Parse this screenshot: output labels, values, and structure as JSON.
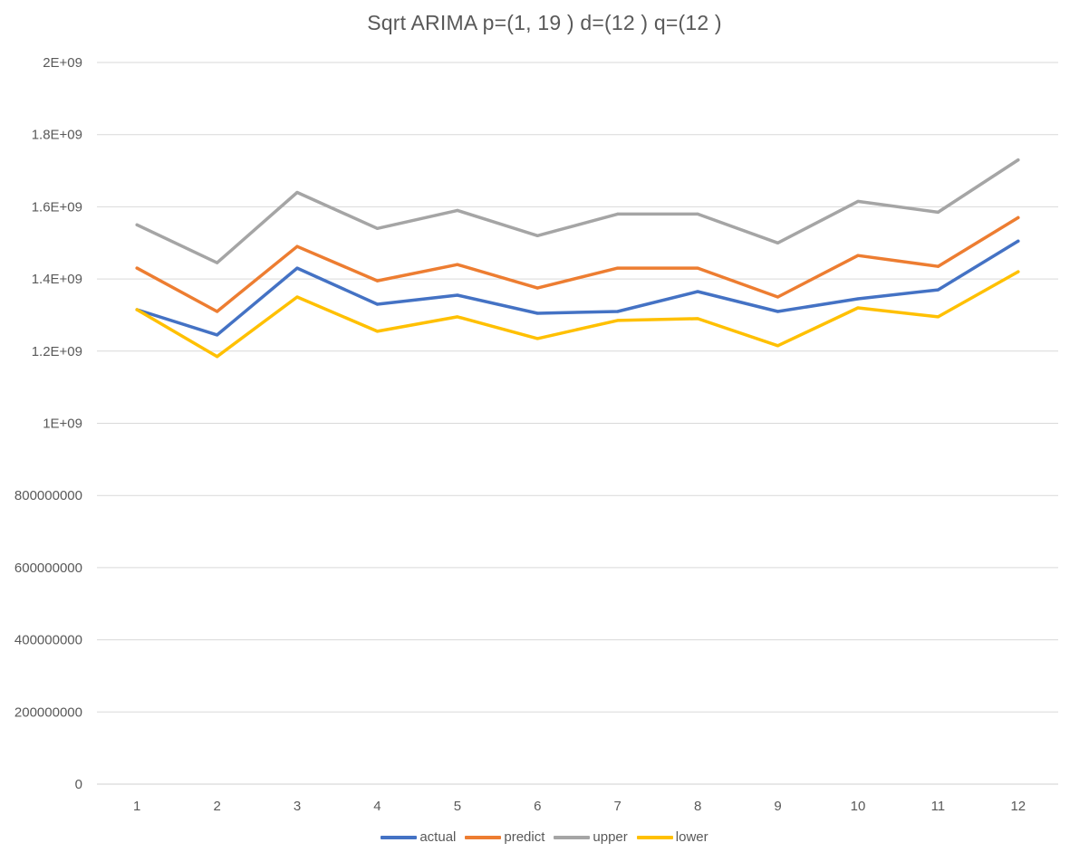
{
  "chart_data": {
    "type": "line",
    "title": "Sqrt ARIMA p=(1, 19 ) d=(12 ) q=(12 )",
    "xlabel": "",
    "ylabel": "",
    "categories": [
      "1",
      "2",
      "3",
      "4",
      "5",
      "6",
      "7",
      "8",
      "9",
      "10",
      "11",
      "12"
    ],
    "ylim": [
      0,
      2000000000
    ],
    "yticks": [
      0,
      200000000,
      400000000,
      600000000,
      800000000,
      1000000000,
      1200000000,
      1400000000,
      1600000000,
      1800000000,
      2000000000
    ],
    "ytick_labels": [
      "0",
      "200000000",
      "400000000",
      "600000000",
      "800000000",
      "1E+09",
      "1.2E+09",
      "1.4E+09",
      "1.6E+09",
      "1.8E+09",
      "2E+09"
    ],
    "grid": true,
    "legend_position": "bottom",
    "series": [
      {
        "name": "actual",
        "color": "#4472C4",
        "values": [
          1315000000,
          1245000000,
          1430000000,
          1330000000,
          1355000000,
          1305000000,
          1310000000,
          1365000000,
          1310000000,
          1345000000,
          1370000000,
          1505000000
        ]
      },
      {
        "name": "predict",
        "color": "#ED7D31",
        "values": [
          1430000000,
          1310000000,
          1490000000,
          1395000000,
          1440000000,
          1375000000,
          1430000000,
          1430000000,
          1350000000,
          1465000000,
          1435000000,
          1570000000
        ]
      },
      {
        "name": "upper",
        "color": "#A5A5A5",
        "values": [
          1550000000,
          1445000000,
          1640000000,
          1540000000,
          1590000000,
          1520000000,
          1580000000,
          1580000000,
          1500000000,
          1615000000,
          1585000000,
          1730000000
        ]
      },
      {
        "name": "lower",
        "color": "#FFC000",
        "values": [
          1315000000,
          1185000000,
          1350000000,
          1255000000,
          1295000000,
          1235000000,
          1285000000,
          1290000000,
          1215000000,
          1320000000,
          1295000000,
          1420000000
        ]
      }
    ]
  }
}
